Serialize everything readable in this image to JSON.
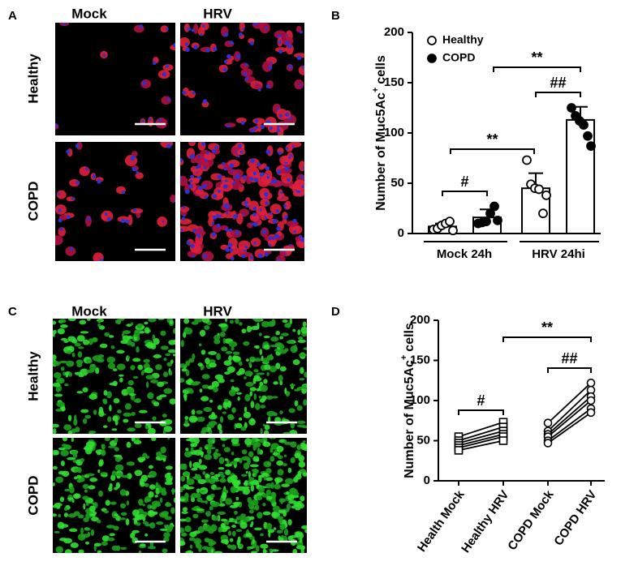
{
  "figure": {
    "panels": [
      {
        "letter": "A",
        "columns": [
          "Mock",
          "HRV"
        ],
        "rows": [
          "Healthy",
          "COPD"
        ]
      },
      {
        "letter": "C",
        "columns": [
          "Mock",
          "HRV"
        ],
        "rows": [
          "Healthy",
          "COPD"
        ]
      }
    ]
  },
  "chart_data": [
    {
      "panel": "B",
      "type": "bar",
      "ylabel": {
        "text": "Number of Muc5Ac",
        "superscript": "+",
        "suffix": "cells"
      },
      "categories": [
        "Mock 24h",
        "HRV 24hi"
      ],
      "ylim": [
        0,
        200
      ],
      "yticks": [
        0,
        50,
        100,
        150,
        200
      ],
      "series": [
        {
          "name": "Healthy",
          "color": "#ffffff",
          "marker": "open-circle",
          "values": [
            7,
            45
          ],
          "errors": [
            3,
            15
          ],
          "points": [
            [
              4,
              5,
              8,
              10,
              12,
              3
            ],
            [
              73,
              49,
              45,
              44,
              20,
              38
            ]
          ]
        },
        {
          "name": "COPD",
          "color": "#000000",
          "marker": "filled-circle",
          "values": [
            16,
            113
          ],
          "errors": [
            8,
            13
          ],
          "points": [
            [
              10,
              11,
              12,
              20,
              27,
              13
            ],
            [
              125,
              117,
              112,
              108,
              97,
              87
            ]
          ]
        }
      ],
      "annotations": [
        "**",
        "##",
        "**",
        "#"
      ]
    },
    {
      "panel": "D",
      "type": "line",
      "ylabel": {
        "text": "Number of Muc5Ac",
        "superscript": "+",
        "suffix": "cells"
      },
      "categories": [
        "Health Mock",
        "Healthy HRV",
        "COPD Mock",
        "COPD HRV"
      ],
      "ylim": [
        0,
        200
      ],
      "yticks": [
        0,
        50,
        100,
        150,
        200
      ],
      "series": [
        {
          "marker": "square",
          "values": [
            55,
            73,
            null,
            null
          ]
        },
        {
          "marker": "square",
          "values": [
            50,
            67,
            null,
            null
          ]
        },
        {
          "marker": "square",
          "values": [
            47,
            62,
            null,
            null
          ]
        },
        {
          "marker": "square",
          "values": [
            44,
            58,
            null,
            null
          ]
        },
        {
          "marker": "square",
          "values": [
            41,
            55,
            null,
            null
          ]
        },
        {
          "marker": "square",
          "values": [
            38,
            50,
            null,
            null
          ]
        },
        {
          "marker": "circle",
          "values": [
            null,
            null,
            72,
            122
          ]
        },
        {
          "marker": "circle",
          "values": [
            null,
            null,
            62,
            113
          ]
        },
        {
          "marker": "circle",
          "values": [
            null,
            null,
            58,
            105
          ]
        },
        {
          "marker": "circle",
          "values": [
            null,
            null,
            55,
            100
          ]
        },
        {
          "marker": "circle",
          "values": [
            null,
            null,
            50,
            90
          ]
        },
        {
          "marker": "circle",
          "values": [
            null,
            null,
            47,
            85
          ]
        }
      ],
      "annotations": [
        "**",
        "##",
        "#"
      ]
    }
  ]
}
